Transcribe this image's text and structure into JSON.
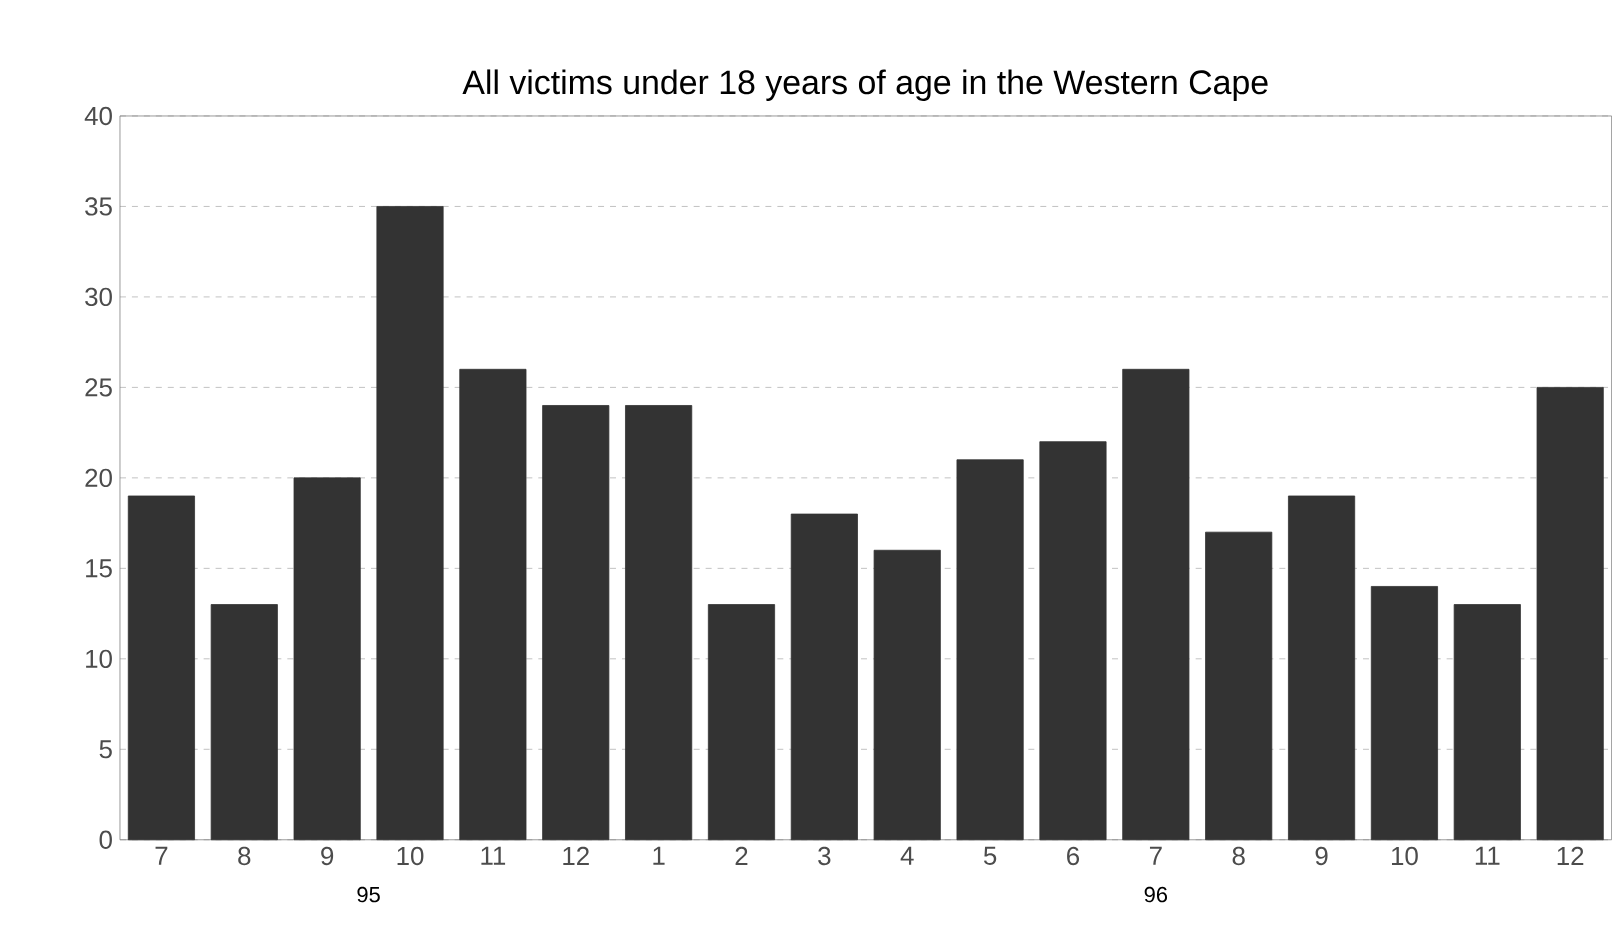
{
  "chart_data": {
    "type": "bar",
    "title": "All victims under 18 years of age in the Western Cape",
    "categories": [
      "7",
      "8",
      "9",
      "10",
      "11",
      "12",
      "1",
      "2",
      "3",
      "4",
      "5",
      "6",
      "7",
      "8",
      "9",
      "10",
      "11",
      "12"
    ],
    "values": [
      19,
      13,
      20,
      35,
      26,
      24,
      24,
      13,
      18,
      16,
      21,
      22,
      26,
      17,
      19,
      14,
      13,
      25
    ],
    "color": "#333333",
    "ylim": [
      0,
      40
    ],
    "yticks": [
      0,
      5,
      10,
      15,
      20,
      25,
      30,
      35,
      40
    ],
    "grid": "y",
    "annotations": [
      "95",
      "96"
    ]
  }
}
